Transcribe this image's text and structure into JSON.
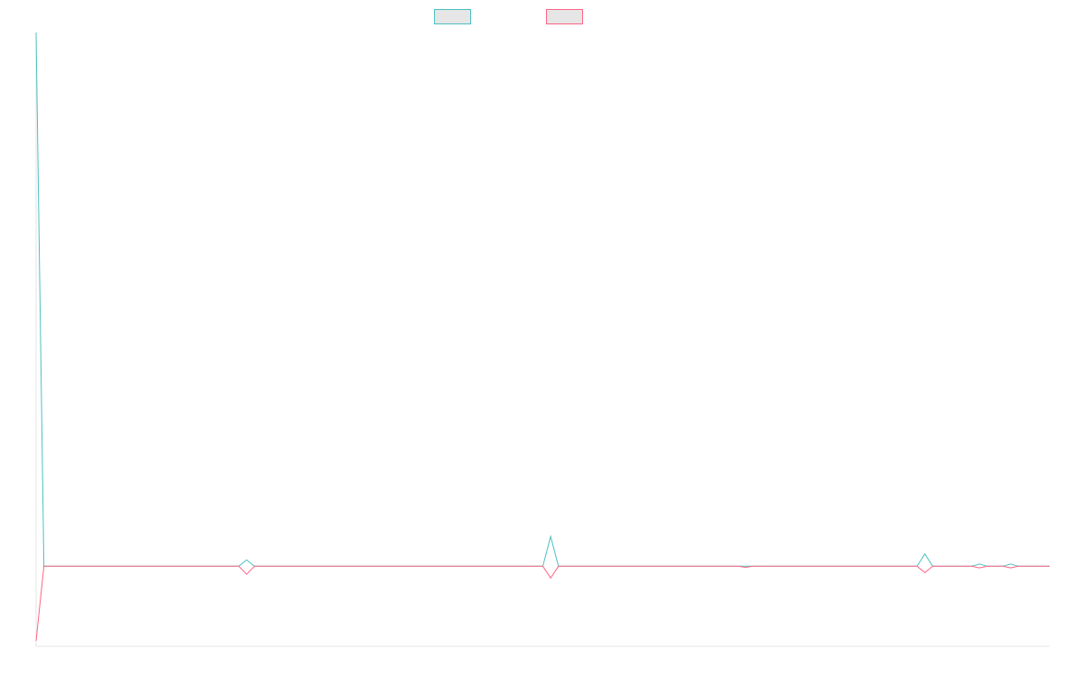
{
  "chart_data": {
    "type": "line",
    "title": "",
    "xlabel": "",
    "ylabel": "",
    "grid": false,
    "legend": "top-center",
    "colors": {
      "series_a": "#4bc0c0",
      "series_b": "#ff6384",
      "axis": "#e5e5e5",
      "legend_fill": "#e6e6e6"
    },
    "ylim": [
      -15,
      100
    ],
    "x": [
      0,
      1,
      2,
      3,
      4,
      5,
      6,
      7,
      8,
      9,
      10,
      11,
      12,
      13,
      14,
      15,
      16,
      17,
      18,
      19,
      20,
      21,
      22,
      23,
      24,
      25,
      26,
      27,
      28,
      29,
      30,
      31,
      32,
      33,
      34,
      35,
      36,
      37,
      38,
      39,
      40,
      41,
      42,
      43,
      44,
      45,
      46,
      47,
      48,
      49,
      50,
      51,
      52,
      53,
      54,
      55,
      56,
      57,
      58,
      59,
      60,
      61,
      62,
      63,
      64,
      65,
      66,
      67,
      68,
      69,
      70,
      71,
      72,
      73,
      74,
      75,
      76,
      77,
      78,
      79,
      80,
      81,
      82,
      83,
      84,
      85,
      86,
      87,
      88,
      89,
      90,
      91,
      92,
      93,
      94,
      95,
      96,
      97,
      98,
      99,
      100,
      101,
      102,
      103,
      104,
      105,
      106,
      107,
      108,
      109,
      110,
      111,
      112,
      113,
      114,
      115,
      116,
      117,
      118,
      119,
      120,
      121,
      122,
      123,
      124,
      125,
      126,
      127,
      128,
      129,
      130
    ],
    "series": [
      {
        "name": "",
        "values": [
          100,
          0,
          0,
          0,
          0,
          0,
          0,
          0,
          0,
          0,
          0,
          0,
          0,
          0,
          0,
          0,
          0,
          0,
          0,
          0,
          0,
          0,
          0,
          0,
          0,
          0,
          0,
          1.2,
          0,
          0,
          0,
          0,
          0,
          0,
          0,
          0,
          0,
          0,
          0,
          0,
          0,
          0,
          0,
          0,
          0,
          0,
          0,
          0,
          0,
          0,
          0,
          0,
          0,
          0,
          0,
          0,
          0,
          0,
          0,
          0,
          0,
          0,
          0,
          0,
          0,
          0,
          5.6,
          0,
          0,
          0,
          0,
          0,
          0,
          0,
          0,
          0,
          0,
          0,
          0,
          0,
          0,
          0,
          0,
          0,
          0,
          0,
          0,
          0,
          0,
          0,
          0,
          0,
          0,
          0,
          0,
          0,
          0,
          0,
          0,
          0,
          0,
          0,
          0,
          0,
          0,
          0,
          0,
          0,
          0,
          0,
          0,
          0,
          0,
          0,
          2.3,
          0,
          0,
          0,
          0,
          0,
          0,
          0.4,
          0,
          0,
          0,
          0.4,
          0,
          0,
          0,
          0,
          0
        ]
      },
      {
        "name": "",
        "values": [
          -14,
          0,
          0,
          0,
          0,
          0,
          0,
          0,
          0,
          0,
          0,
          0,
          0,
          0,
          0,
          0,
          0,
          0,
          0,
          0,
          0,
          0,
          0,
          0,
          0,
          0,
          0,
          -1.5,
          0,
          0,
          0,
          0,
          0,
          0,
          0,
          0,
          0,
          0,
          0,
          0,
          0,
          0,
          0,
          0,
          0,
          0,
          0,
          0,
          0,
          0,
          0,
          0,
          0,
          0,
          0,
          0,
          0,
          0,
          0,
          0,
          0,
          0,
          0,
          0,
          0,
          0,
          -2.2,
          0,
          0,
          0,
          0,
          0,
          0,
          0,
          0,
          0,
          0,
          0,
          0,
          0,
          0,
          0,
          0,
          0,
          0,
          0,
          0,
          0,
          0,
          0,
          0,
          -0.2,
          0,
          0,
          0,
          0,
          0,
          0,
          0,
          0,
          0,
          0,
          0,
          0,
          0,
          0,
          0,
          0,
          0,
          0,
          0,
          0,
          0,
          0,
          -1.2,
          0,
          0,
          0,
          0,
          0,
          0,
          -0.3,
          0,
          0,
          0,
          -0.3,
          0,
          0,
          0,
          0,
          0
        ]
      }
    ]
  }
}
